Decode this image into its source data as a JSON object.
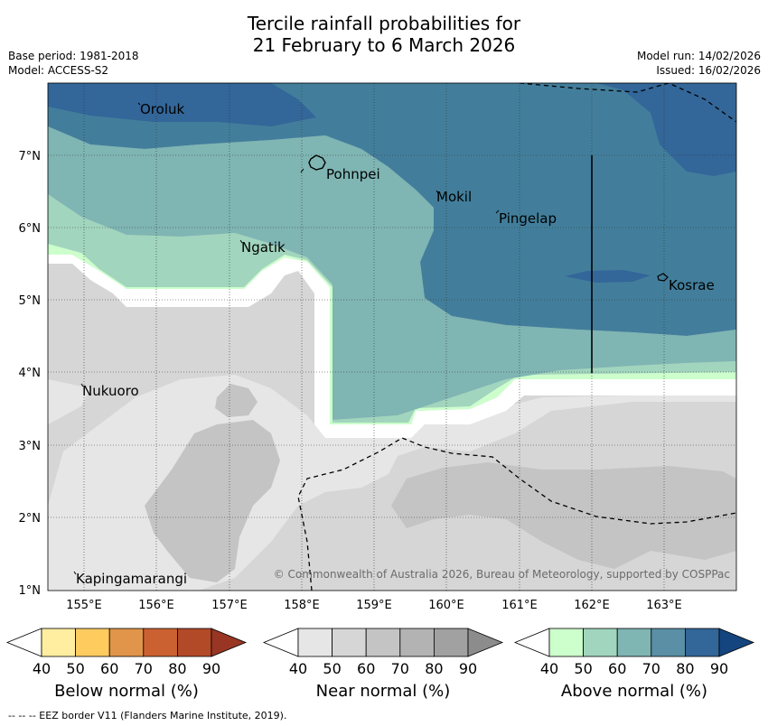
{
  "title": {
    "line1": "Tercile rainfall probabilities for",
    "line2": "21 February to 6 March 2026"
  },
  "meta": {
    "base_period": "Base period: 1981-2018",
    "model": "Model: ACCESS-S2",
    "model_run": "Model run: 14/02/2026",
    "issued": "Issued: 16/02/2026"
  },
  "axes": {
    "lon_labels": [
      "155°E",
      "156°E",
      "157°E",
      "158°E",
      "159°E",
      "160°E",
      "161°E",
      "162°E",
      "163°E"
    ],
    "lat_labels": [
      "7°N",
      "6°N",
      "5°N",
      "4°N",
      "3°N",
      "2°N",
      "1°N"
    ]
  },
  "places": [
    {
      "name": "Oroluk"
    },
    {
      "name": "Pohnpei"
    },
    {
      "name": "Mokil"
    },
    {
      "name": "Pingelap"
    },
    {
      "name": "Ngatik"
    },
    {
      "name": "Kosrae"
    },
    {
      "name": "Nukuoro"
    },
    {
      "name": "Kapingamarangi"
    }
  ],
  "copyright": "© Commonwealth of Australia 2026, Bureau of Meteorology, supported by COSPPac",
  "colorbars": [
    {
      "label": "Below normal (%)",
      "ticks": [
        "40",
        "50",
        "60",
        "70",
        "80",
        "90"
      ],
      "colors": [
        "#ffffff",
        "#ffeda0",
        "#fecb5f",
        "#e0954a",
        "#cb6131",
        "#b24a28",
        "#983623"
      ]
    },
    {
      "label": "Near normal (%)",
      "ticks": [
        "40",
        "50",
        "60",
        "70",
        "80",
        "90"
      ],
      "colors": [
        "#ffffff",
        "#e6e6e6",
        "#d6d6d6",
        "#c4c4c4",
        "#b3b3b3",
        "#a1a1a1",
        "#8c8c8c"
      ]
    },
    {
      "label": "Above normal (%)",
      "ticks": [
        "40",
        "50",
        "60",
        "70",
        "80",
        "90"
      ],
      "colors": [
        "#ffffff",
        "#ccffcc",
        "#a1d5bd",
        "#7fb5b3",
        "#5a8fa5",
        "#336699",
        "#15457f"
      ]
    }
  ],
  "footer": "--  --  -- EEZ border V11 (Flanders Marine Institute, 2019)."
}
